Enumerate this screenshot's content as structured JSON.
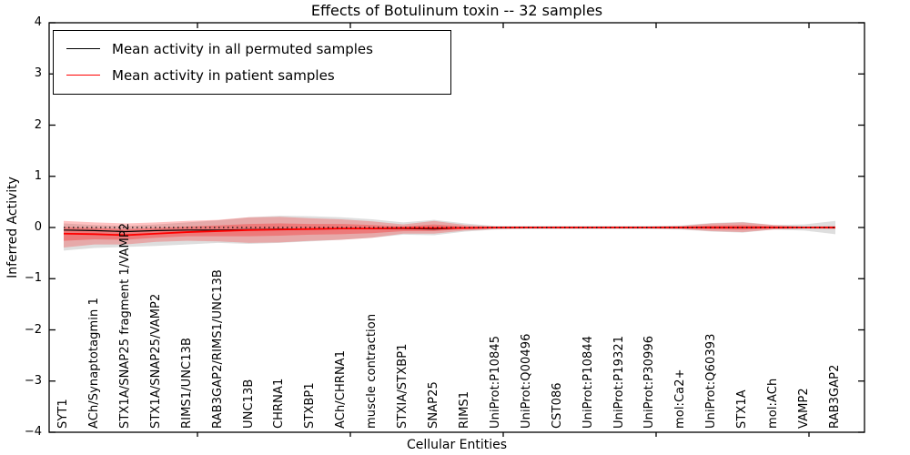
{
  "chart_data": {
    "type": "line",
    "title": "Effects of Botulinum toxin -- 32 samples",
    "xlabel": "Cellular Entities",
    "ylabel": "Inferred Activity",
    "ylim": [
      -4,
      4
    ],
    "grid": false,
    "legend_position": "upper left",
    "yticks": [
      {
        "value": 4,
        "label": "4"
      },
      {
        "value": 3,
        "label": "3"
      },
      {
        "value": 2,
        "label": "2"
      },
      {
        "value": 1,
        "label": "1"
      },
      {
        "value": 0,
        "label": "0"
      },
      {
        "value": -1,
        "label": "−1"
      },
      {
        "value": -2,
        "label": "−2"
      },
      {
        "value": -3,
        "label": "−3"
      },
      {
        "value": -4,
        "label": "−4"
      }
    ],
    "categories": [
      "SYT1",
      "ACh/Synaptotagmin 1",
      "STX1A/SNAP25 fragment 1/VAMP2",
      "STX1A/SNAP25/VAMP2",
      "RIMS1/UNC13B",
      "RAB3GAP2/RIMS1/UNC13B",
      "UNC13B",
      "CHRNA1",
      "STXBP1",
      "ACh/CHRNA1",
      "muscle contraction",
      "STXIA/STXBP1",
      "SNAP25",
      "RIMS1",
      "UniProt:P10845",
      "UniProt:Q00496",
      "CST086",
      "UniProt:P10844",
      "UniProt:P19321",
      "UniProt:P30996",
      "mol:Ca2+",
      "UniProt:Q60393",
      "STX1A",
      "mol:ACh",
      "VAMP2",
      "RAB3GAP2"
    ],
    "series": [
      {
        "name": "Mean activity in all permuted samples",
        "color": "#000000",
        "line_width": 1.2,
        "values": [
          -0.05,
          -0.06,
          -0.08,
          -0.06,
          -0.05,
          -0.05,
          -0.04,
          -0.03,
          -0.03,
          -0.02,
          -0.02,
          -0.02,
          -0.03,
          -0.01,
          0,
          0,
          0,
          0,
          0,
          0,
          0,
          0,
          0,
          0,
          0,
          0
        ]
      },
      {
        "name": "Mean activity in patient samples",
        "color": "#ff0000",
        "line_width": 1.8,
        "values": [
          -0.12,
          -0.13,
          -0.15,
          -0.12,
          -0.09,
          -0.07,
          -0.05,
          -0.04,
          -0.03,
          -0.02,
          -0.02,
          -0.01,
          -0.01,
          -0.01,
          0,
          0,
          0,
          0,
          0,
          0,
          0,
          0,
          0,
          0,
          0,
          0
        ]
      }
    ],
    "reference_line": {
      "y": 0,
      "style": "dotted",
      "color": "#000000"
    },
    "bands": [
      {
        "name": "permuted-samples-band",
        "color": "rgba(0,0,0,0.13)",
        "hi": [
          0.08,
          0.05,
          0.03,
          0.06,
          0.1,
          0.14,
          0.2,
          0.23,
          0.22,
          0.2,
          0.16,
          0.1,
          0.15,
          0.08,
          0.03,
          0.03,
          0.03,
          0.03,
          0.03,
          0.03,
          0.04,
          0.09,
          0.11,
          0.05,
          0.06,
          0.13
        ],
        "lo": [
          -0.45,
          -0.4,
          -0.38,
          -0.36,
          -0.33,
          -0.3,
          -0.32,
          -0.3,
          -0.27,
          -0.24,
          -0.2,
          -0.14,
          -0.15,
          -0.08,
          -0.04,
          -0.03,
          -0.03,
          -0.03,
          -0.03,
          -0.03,
          -0.04,
          -0.08,
          -0.1,
          -0.04,
          -0.06,
          -0.13
        ]
      },
      {
        "name": "patient-samples-band-outer",
        "color": "rgba(255,0,0,0.24)",
        "hi": [
          0.13,
          0.1,
          0.08,
          0.1,
          0.13,
          0.15,
          0.2,
          0.21,
          0.18,
          0.16,
          0.12,
          0.06,
          0.13,
          0.05,
          0.02,
          0.02,
          0.02,
          0.02,
          0.02,
          0.02,
          0.03,
          0.08,
          0.1,
          0.05,
          0.02,
          0.03
        ],
        "lo": [
          -0.39,
          -0.33,
          -0.33,
          -0.28,
          -0.26,
          -0.27,
          -0.3,
          -0.29,
          -0.26,
          -0.24,
          -0.2,
          -0.12,
          -0.12,
          -0.06,
          -0.03,
          -0.02,
          -0.02,
          -0.02,
          -0.02,
          -0.02,
          -0.03,
          -0.07,
          -0.09,
          -0.04,
          -0.02,
          -0.03
        ],
        "hi2": null
      },
      {
        "name": "patient-samples-band-inner",
        "color": "rgba(255,0,0,0.28)",
        "hi": [
          0.01,
          -0.01,
          -0.03,
          -0.01,
          0.02,
          0.04,
          0.07,
          0.08,
          0.07,
          0.07,
          0.05,
          0.02,
          0.06,
          0.02,
          0.01,
          0.01,
          0.01,
          0.01,
          0.01,
          0.01,
          0.015,
          0.04,
          0.05,
          0.025,
          0.01,
          0.015
        ],
        "lo": [
          -0.26,
          -0.23,
          -0.24,
          -0.2,
          -0.17,
          -0.17,
          -0.17,
          -0.16,
          -0.14,
          -0.13,
          -0.11,
          -0.07,
          -0.07,
          -0.03,
          -0.015,
          -0.01,
          -0.01,
          -0.01,
          -0.01,
          -0.01,
          -0.015,
          -0.035,
          -0.045,
          -0.02,
          -0.01,
          -0.015
        ]
      }
    ]
  }
}
